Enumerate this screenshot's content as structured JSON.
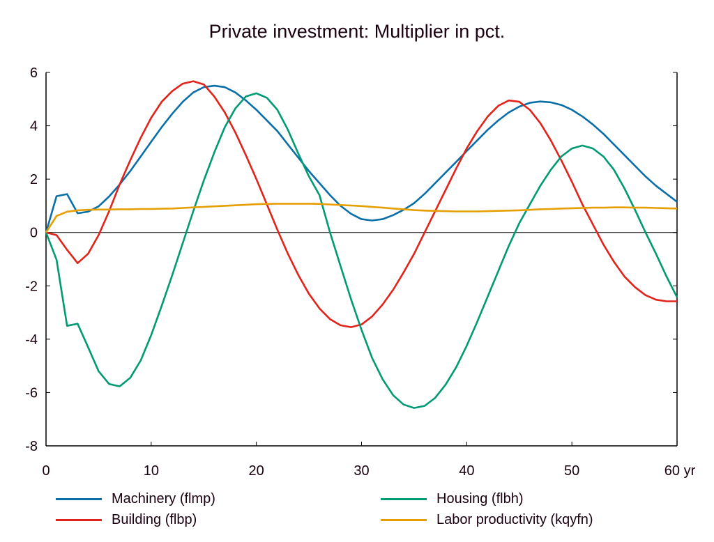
{
  "chart_data": {
    "type": "line",
    "title": "Private investment: Multiplier in pct.",
    "xlabel": "",
    "ylabel": "",
    "x_unit_label": "yr",
    "xlim": [
      0,
      60
    ],
    "ylim": [
      -8,
      6
    ],
    "x_ticks": [
      0,
      10,
      20,
      30,
      40,
      50,
      60
    ],
    "x_tick_labels": [
      "0",
      "10",
      "20",
      "30",
      "40",
      "50",
      "60 yr"
    ],
    "y_ticks": [
      -8,
      -6,
      -4,
      -2,
      0,
      2,
      4,
      6
    ],
    "y_tick_labels": [
      "-8",
      "-6",
      "-4",
      "-2",
      "0",
      "2",
      "4",
      "6"
    ],
    "grid": false,
    "zero_line": true,
    "legend_position": "bottom",
    "x": [
      0,
      1,
      2,
      3,
      4,
      5,
      6,
      7,
      8,
      9,
      10,
      11,
      12,
      13,
      14,
      15,
      16,
      17,
      18,
      19,
      20,
      21,
      22,
      23,
      24,
      25,
      26,
      27,
      28,
      29,
      30,
      31,
      32,
      33,
      34,
      35,
      36,
      37,
      38,
      39,
      40,
      41,
      42,
      43,
      44,
      45,
      46,
      47,
      48,
      49,
      50,
      51,
      52,
      53,
      54,
      55,
      56,
      57,
      58,
      59,
      60
    ],
    "series": [
      {
        "name": "Machinery (flmp)",
        "color": "#0a6fa8",
        "values": [
          0,
          1.36,
          1.44,
          0.72,
          0.78,
          0.98,
          1.35,
          1.8,
          2.3,
          2.85,
          3.4,
          3.95,
          4.45,
          4.9,
          5.25,
          5.45,
          5.5,
          5.45,
          5.25,
          4.95,
          4.6,
          4.2,
          3.8,
          3.3,
          2.8,
          2.3,
          1.85,
          1.4,
          1.0,
          0.7,
          0.5,
          0.45,
          0.5,
          0.65,
          0.85,
          1.1,
          1.45,
          1.85,
          2.25,
          2.65,
          3.05,
          3.45,
          3.85,
          4.2,
          4.5,
          4.72,
          4.86,
          4.91,
          4.88,
          4.78,
          4.6,
          4.35,
          4.05,
          3.7,
          3.3,
          2.9,
          2.5,
          2.1,
          1.75,
          1.45,
          1.15
        ]
      },
      {
        "name": "Building (flbp)",
        "color": "#e2231a",
        "values": [
          0,
          -0.1,
          -0.65,
          -1.15,
          -0.8,
          -0.1,
          0.8,
          1.8,
          2.7,
          3.55,
          4.3,
          4.9,
          5.3,
          5.58,
          5.67,
          5.55,
          5.1,
          4.5,
          3.75,
          2.9,
          2.0,
          1.05,
          0.1,
          -0.8,
          -1.6,
          -2.3,
          -2.85,
          -3.25,
          -3.48,
          -3.55,
          -3.45,
          -3.15,
          -2.7,
          -2.15,
          -1.5,
          -0.8,
          0.0,
          0.8,
          1.6,
          2.4,
          3.15,
          3.8,
          4.35,
          4.75,
          4.95,
          4.9,
          4.6,
          4.1,
          3.45,
          2.7,
          1.9,
          1.05,
          0.3,
          -0.45,
          -1.1,
          -1.65,
          -2.05,
          -2.35,
          -2.52,
          -2.58,
          -2.58
        ]
      },
      {
        "name": "Housing (flbh)",
        "color": "#009a73",
        "values": [
          0,
          -1.02,
          -3.5,
          -3.42,
          -4.3,
          -5.2,
          -5.68,
          -5.77,
          -5.45,
          -4.8,
          -3.85,
          -2.75,
          -1.6,
          -0.4,
          0.8,
          1.95,
          3.0,
          3.95,
          4.65,
          5.1,
          5.22,
          5.05,
          4.6,
          3.85,
          2.95,
          2.1,
          1.4,
          0.0,
          -1.25,
          -2.5,
          -3.65,
          -4.7,
          -5.5,
          -6.1,
          -6.45,
          -6.58,
          -6.5,
          -6.2,
          -5.7,
          -5.05,
          -4.25,
          -3.35,
          -2.4,
          -1.45,
          -0.5,
          0.35,
          1.05,
          1.75,
          2.35,
          2.85,
          3.15,
          3.26,
          3.15,
          2.85,
          2.35,
          1.65,
          0.85,
          0.0,
          -0.8,
          -1.65,
          -2.43
        ]
      },
      {
        "name": "Labor productivity (kqyfn)",
        "color": "#e69f00",
        "values": [
          0,
          0.62,
          0.78,
          0.83,
          0.85,
          0.86,
          0.86,
          0.87,
          0.87,
          0.88,
          0.88,
          0.89,
          0.9,
          0.92,
          0.94,
          0.96,
          0.98,
          1.0,
          1.02,
          1.04,
          1.06,
          1.07,
          1.08,
          1.08,
          1.08,
          1.08,
          1.07,
          1.05,
          1.03,
          1.01,
          0.99,
          0.96,
          0.93,
          0.9,
          0.87,
          0.84,
          0.82,
          0.81,
          0.8,
          0.79,
          0.79,
          0.79,
          0.8,
          0.81,
          0.82,
          0.83,
          0.85,
          0.87,
          0.88,
          0.9,
          0.91,
          0.92,
          0.93,
          0.93,
          0.94,
          0.94,
          0.93,
          0.93,
          0.92,
          0.91,
          0.9
        ]
      }
    ]
  },
  "legend": {
    "items": [
      {
        "label": "Machinery (flmp)",
        "color": "#0a6fa8"
      },
      {
        "label": "Housing (flbh)",
        "color": "#009a73"
      },
      {
        "label": "Building (flbp)",
        "color": "#e2231a"
      },
      {
        "label": "Labor productivity (kqyfn)",
        "color": "#e69f00"
      }
    ]
  }
}
